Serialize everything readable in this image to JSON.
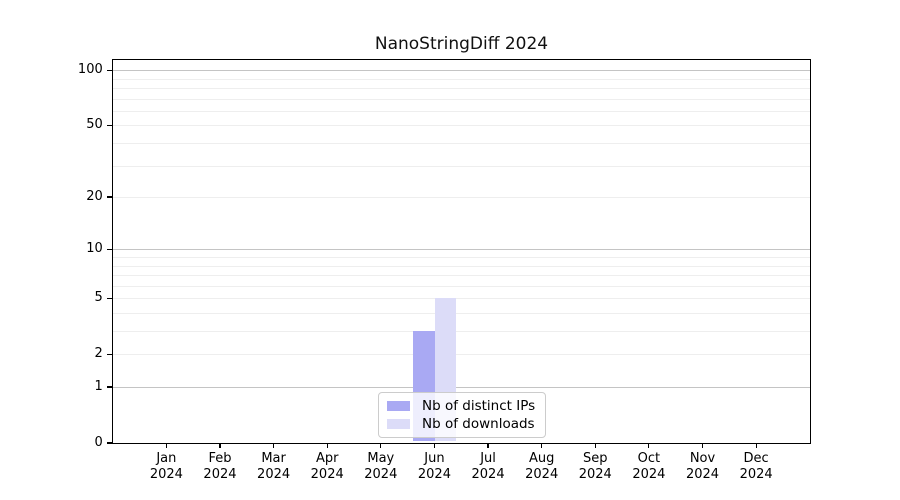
{
  "figure": {
    "title": "NanoStringDiff 2024"
  },
  "chart_data": {
    "type": "bar",
    "title": "NanoStringDiff 2024",
    "categories": [
      "Jan",
      "Feb",
      "Mar",
      "Apr",
      "May",
      "Jun",
      "Jul",
      "Aug",
      "Sep",
      "Oct",
      "Nov",
      "Dec"
    ],
    "category_year": "2024",
    "series": [
      {
        "name": "Nb of distinct IPs",
        "color": "#a9a9f3",
        "values": [
          0,
          0,
          0,
          0,
          0,
          3,
          0,
          0,
          0,
          0,
          0,
          0
        ]
      },
      {
        "name": "Nb of downloads",
        "color": "#dcdcf8",
        "values": [
          0,
          0,
          0,
          0,
          0,
          5,
          0,
          0,
          0,
          0,
          0,
          0
        ]
      }
    ],
    "xlabel": "",
    "ylabel": "",
    "y_axis": {
      "scale": "log1p",
      "range": [
        0,
        113
      ],
      "tick_values": [
        0,
        1,
        2,
        5,
        10,
        20,
        50,
        100
      ],
      "major_grid_values": [
        1,
        10,
        100
      ],
      "minor_grid_values": [
        2,
        3,
        4,
        5,
        6,
        7,
        8,
        9,
        20,
        30,
        40,
        50,
        60,
        70,
        80,
        90
      ],
      "grid": true
    },
    "legend": {
      "position": "lower center inside",
      "entries": [
        "Nb of distinct IPs",
        "Nb of downloads"
      ]
    },
    "colors": {
      "bar_distinct_ips": "#a9a9f3",
      "bar_downloads": "#dcdcf8",
      "major_grid": "#c4c4c4",
      "minor_grid": "#eeeeee",
      "spine": "#000000",
      "legend_border": "#cccccc"
    }
  }
}
